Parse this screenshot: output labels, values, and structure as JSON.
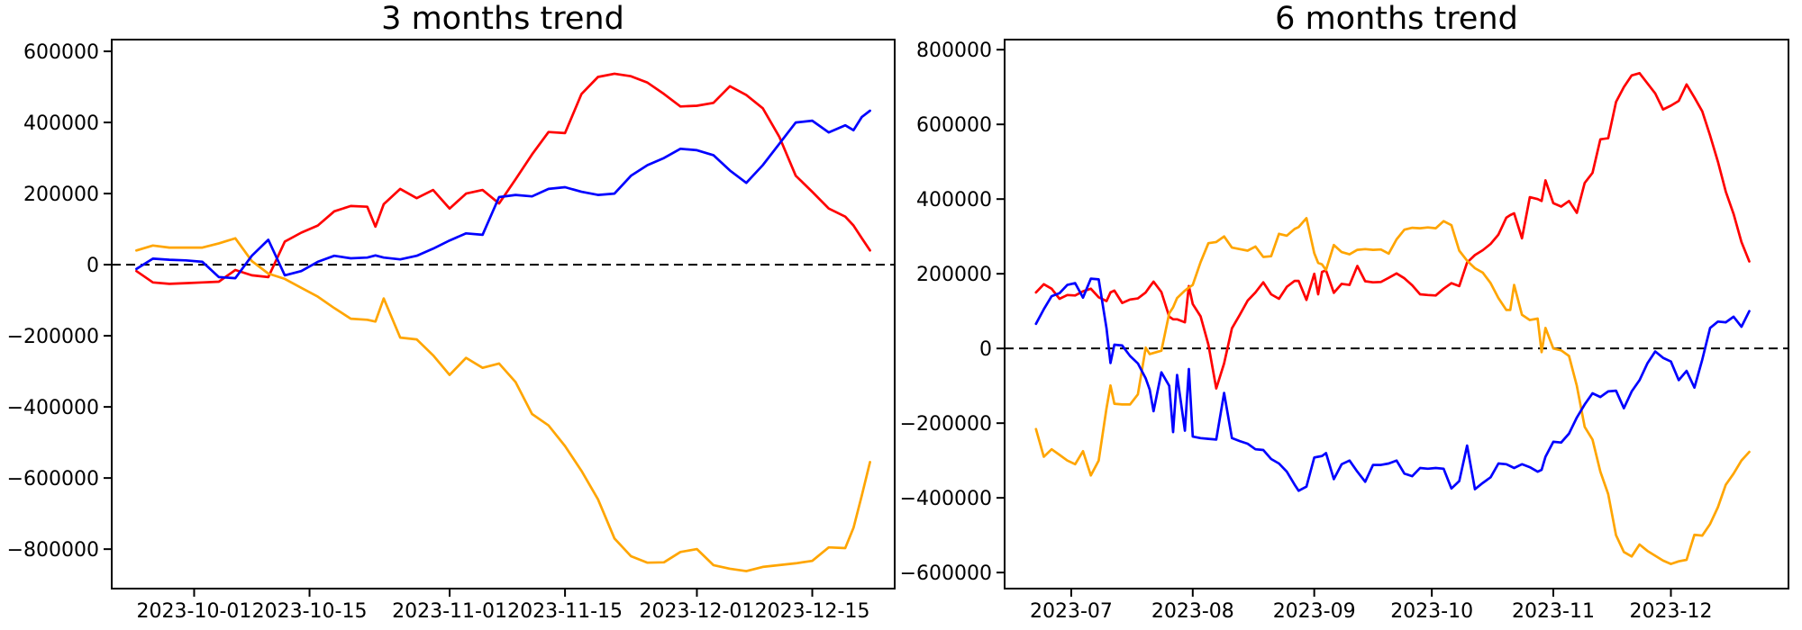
{
  "chart_data": [
    {
      "type": "line",
      "title": "3 months trend",
      "grid": false,
      "legend": null,
      "zero_line": true,
      "xlim": [
        "2023-09-21",
        "2023-12-25"
      ],
      "ylim": [
        -911000,
        633000
      ],
      "xticks": [
        {
          "date": "2023-10-01",
          "label": "2023-10-01"
        },
        {
          "date": "2023-10-15",
          "label": "2023-10-15"
        },
        {
          "date": "2023-11-01",
          "label": "2023-11-01"
        },
        {
          "date": "2023-11-15",
          "label": "2023-11-15"
        },
        {
          "date": "2023-12-01",
          "label": "2023-12-01"
        },
        {
          "date": "2023-12-15",
          "label": "2023-12-15"
        }
      ],
      "yticks": [
        {
          "value": 600000,
          "label": "600000"
        },
        {
          "value": 400000,
          "label": "400000"
        },
        {
          "value": 200000,
          "label": "200000"
        },
        {
          "value": 0,
          "label": "0"
        },
        {
          "value": -200000,
          "label": "−200000"
        },
        {
          "value": -400000,
          "label": "−400000"
        },
        {
          "value": -600000,
          "label": "−600000"
        },
        {
          "value": -800000,
          "label": "−800000"
        }
      ],
      "x": [
        "2023-09-24",
        "2023-09-26",
        "2023-09-28",
        "2023-09-30",
        "2023-10-02",
        "2023-10-04",
        "2023-10-06",
        "2023-10-08",
        "2023-10-10",
        "2023-10-12",
        "2023-10-14",
        "2023-10-16",
        "2023-10-18",
        "2023-10-20",
        "2023-10-22",
        "2023-10-23",
        "2023-10-24",
        "2023-10-26",
        "2023-10-28",
        "2023-10-30",
        "2023-11-01",
        "2023-11-03",
        "2023-11-05",
        "2023-11-07",
        "2023-11-09",
        "2023-11-11",
        "2023-11-13",
        "2023-11-15",
        "2023-11-17",
        "2023-11-19",
        "2023-11-21",
        "2023-11-23",
        "2023-11-25",
        "2023-11-27",
        "2023-11-29",
        "2023-12-01",
        "2023-12-03",
        "2023-12-05",
        "2023-12-07",
        "2023-12-09",
        "2023-12-11",
        "2023-12-13",
        "2023-12-15",
        "2023-12-17",
        "2023-12-19",
        "2023-12-20",
        "2023-12-21",
        "2023-12-22"
      ],
      "series": [
        {
          "name": "red",
          "color": "#ff0000",
          "values": [
            -18000,
            -50000,
            -54000,
            -52000,
            -50000,
            -48000,
            -15000,
            -30000,
            -35000,
            65000,
            90000,
            110000,
            150000,
            165000,
            163000,
            107000,
            170000,
            213000,
            187000,
            210000,
            158000,
            200000,
            210000,
            172000,
            240000,
            310000,
            373000,
            370000,
            480000,
            528000,
            537000,
            530000,
            512000,
            480000,
            445000,
            447000,
            455000,
            502000,
            477000,
            440000,
            360000,
            250000,
            205000,
            158000,
            135000,
            110000,
            75000,
            40000
          ]
        },
        {
          "name": "blue",
          "color": "#0000ff",
          "values": [
            -12000,
            17000,
            14000,
            12000,
            8000,
            -35000,
            -38000,
            25000,
            70000,
            -30000,
            -18000,
            8000,
            25000,
            18000,
            20000,
            26000,
            20000,
            15000,
            25000,
            45000,
            68000,
            88000,
            84000,
            190000,
            196000,
            192000,
            213000,
            218000,
            205000,
            196000,
            200000,
            250000,
            280000,
            300000,
            326000,
            322000,
            308000,
            265000,
            230000,
            280000,
            340000,
            400000,
            405000,
            372000,
            392000,
            378000,
            415000,
            433000
          ]
        },
        {
          "name": "orange",
          "color": "#ffa500",
          "values": [
            40000,
            54000,
            48000,
            48000,
            48000,
            60000,
            74000,
            10000,
            -25000,
            -40000,
            -65000,
            -90000,
            -122000,
            -152000,
            -155000,
            -160000,
            -95000,
            -205000,
            -210000,
            -255000,
            -310000,
            -262000,
            -290000,
            -278000,
            -330000,
            -420000,
            -452000,
            -510000,
            -580000,
            -660000,
            -770000,
            -820000,
            -838000,
            -837000,
            -808000,
            -800000,
            -845000,
            -855000,
            -862000,
            -850000,
            -845000,
            -840000,
            -833000,
            -795000,
            -797000,
            -740000,
            -650000,
            -555000
          ]
        }
      ]
    },
    {
      "type": "line",
      "title": "6 months trend",
      "grid": false,
      "legend": null,
      "zero_line": true,
      "xlim": [
        "2023-06-14",
        "2023-12-31"
      ],
      "ylim": [
        -643000,
        827000
      ],
      "xticks": [
        {
          "date": "2023-07-01",
          "label": "2023-07"
        },
        {
          "date": "2023-08-01",
          "label": "2023-08"
        },
        {
          "date": "2023-09-01",
          "label": "2023-09"
        },
        {
          "date": "2023-10-01",
          "label": "2023-10"
        },
        {
          "date": "2023-11-01",
          "label": "2023-11"
        },
        {
          "date": "2023-12-01",
          "label": "2023-12"
        }
      ],
      "yticks": [
        {
          "value": 800000,
          "label": "800000"
        },
        {
          "value": 600000,
          "label": "600000"
        },
        {
          "value": 400000,
          "label": "400000"
        },
        {
          "value": 200000,
          "label": "200000"
        },
        {
          "value": 0,
          "label": "0"
        },
        {
          "value": -200000,
          "label": "−200000"
        },
        {
          "value": -400000,
          "label": "−400000"
        },
        {
          "value": -600000,
          "label": "−600000"
        }
      ],
      "x": [
        "2023-06-22",
        "2023-06-24",
        "2023-06-26",
        "2023-06-28",
        "2023-06-30",
        "2023-07-02",
        "2023-07-04",
        "2023-07-06",
        "2023-07-08",
        "2023-07-10",
        "2023-07-11",
        "2023-07-12",
        "2023-07-14",
        "2023-07-16",
        "2023-07-18",
        "2023-07-20",
        "2023-07-21",
        "2023-07-22",
        "2023-07-24",
        "2023-07-26",
        "2023-07-27",
        "2023-07-28",
        "2023-07-30",
        "2023-07-31",
        "2023-08-01",
        "2023-08-03",
        "2023-08-05",
        "2023-08-07",
        "2023-08-09",
        "2023-08-11",
        "2023-08-13",
        "2023-08-15",
        "2023-08-17",
        "2023-08-19",
        "2023-08-21",
        "2023-08-23",
        "2023-08-25",
        "2023-08-27",
        "2023-08-28",
        "2023-08-30",
        "2023-09-01",
        "2023-09-02",
        "2023-09-03",
        "2023-09-04",
        "2023-09-06",
        "2023-09-08",
        "2023-09-10",
        "2023-09-12",
        "2023-09-14",
        "2023-09-16",
        "2023-09-18",
        "2023-09-20",
        "2023-09-22",
        "2023-09-24",
        "2023-09-26",
        "2023-09-28",
        "2023-09-30",
        "2023-10-02",
        "2023-10-04",
        "2023-10-06",
        "2023-10-08",
        "2023-10-10",
        "2023-10-12",
        "2023-10-14",
        "2023-10-16",
        "2023-10-18",
        "2023-10-20",
        "2023-10-21",
        "2023-10-22",
        "2023-10-24",
        "2023-10-26",
        "2023-10-28",
        "2023-10-29",
        "2023-10-30",
        "2023-11-01",
        "2023-11-03",
        "2023-11-05",
        "2023-11-07",
        "2023-11-09",
        "2023-11-11",
        "2023-11-13",
        "2023-11-15",
        "2023-11-17",
        "2023-11-19",
        "2023-11-21",
        "2023-11-23",
        "2023-11-25",
        "2023-11-27",
        "2023-11-29",
        "2023-12-01",
        "2023-12-03",
        "2023-12-05",
        "2023-12-07",
        "2023-12-09",
        "2023-12-11",
        "2023-12-13",
        "2023-12-15",
        "2023-12-17",
        "2023-12-19",
        "2023-12-21"
      ],
      "series": [
        {
          "name": "red",
          "color": "#ff0000",
          "values": [
            150000,
            172000,
            160000,
            133000,
            143000,
            142000,
            153000,
            160000,
            137000,
            127000,
            150000,
            155000,
            122000,
            131000,
            134000,
            150000,
            165000,
            179000,
            151000,
            85000,
            78000,
            78000,
            70000,
            167000,
            119000,
            86000,
            10000,
            -107000,
            -40000,
            54000,
            90000,
            128000,
            150000,
            177000,
            145000,
            133000,
            165000,
            181000,
            181000,
            130000,
            200000,
            145000,
            205000,
            209000,
            149000,
            173000,
            170000,
            221000,
            180000,
            177000,
            178000,
            189000,
            201000,
            188000,
            169000,
            145000,
            143000,
            142000,
            160000,
            175000,
            167000,
            230000,
            250000,
            263000,
            280000,
            305000,
            350000,
            357000,
            362000,
            295000,
            405000,
            400000,
            395000,
            450000,
            389000,
            380000,
            395000,
            363000,
            443000,
            470000,
            560000,
            563000,
            660000,
            700000,
            731000,
            737000,
            710000,
            683000,
            640000,
            650000,
            663000,
            707000,
            672000,
            635000,
            570000,
            500000,
            420000,
            360000,
            285000,
            233000
          ]
        },
        {
          "name": "blue",
          "color": "#0000ff",
          "values": [
            66000,
            105000,
            140000,
            148000,
            170000,
            175000,
            136000,
            187000,
            185000,
            54000,
            -39000,
            10000,
            8000,
            -20000,
            -40000,
            -80000,
            -110000,
            -168000,
            -64000,
            -100000,
            -224000,
            -71000,
            -220000,
            -55000,
            -236000,
            -240000,
            -242000,
            -244000,
            -119000,
            -240000,
            -248000,
            -255000,
            -270000,
            -272000,
            -296000,
            -308000,
            -330000,
            -365000,
            -381000,
            -370000,
            -292000,
            -290000,
            -288000,
            -280000,
            -350000,
            -310000,
            -300000,
            -330000,
            -357000,
            -312000,
            -312000,
            -308000,
            -300000,
            -335000,
            -342000,
            -320000,
            -322000,
            -320000,
            -322000,
            -375000,
            -355000,
            -260000,
            -377000,
            -360000,
            -345000,
            -308000,
            -310000,
            -315000,
            -320000,
            -310000,
            -318000,
            -330000,
            -325000,
            -290000,
            -250000,
            -252000,
            -228000,
            -185000,
            -150000,
            -120000,
            -130000,
            -115000,
            -113000,
            -160000,
            -115000,
            -85000,
            -40000,
            -8000,
            -25000,
            -35000,
            -85000,
            -60000,
            -105000,
            -30000,
            55000,
            72000,
            70000,
            85000,
            58000,
            100000
          ]
        },
        {
          "name": "orange",
          "color": "#ffa500",
          "values": [
            -216000,
            -290000,
            -270000,
            -285000,
            -300000,
            -310000,
            -275000,
            -340000,
            -300000,
            -160000,
            -99000,
            -148000,
            -150000,
            -150000,
            -123000,
            2000,
            -15000,
            -12000,
            -6000,
            94000,
            110000,
            135000,
            155000,
            163000,
            170000,
            231000,
            282000,
            285000,
            300000,
            270000,
            266000,
            262000,
            273000,
            245000,
            247000,
            307000,
            302000,
            320000,
            325000,
            349000,
            255000,
            229000,
            225000,
            210000,
            277000,
            258000,
            252000,
            264000,
            266000,
            264000,
            265000,
            254000,
            292000,
            318000,
            323000,
            322000,
            324000,
            322000,
            341000,
            330000,
            262000,
            235000,
            215000,
            203000,
            175000,
            135000,
            103000,
            103000,
            170000,
            90000,
            76000,
            80000,
            -10000,
            55000,
            0,
            -5000,
            -20000,
            -100000,
            -210000,
            -244000,
            -330000,
            -390000,
            -500000,
            -545000,
            -557000,
            -525000,
            -542000,
            -555000,
            -568000,
            -577000,
            -570000,
            -566000,
            -499000,
            -501000,
            -470000,
            -425000,
            -365000,
            -335000,
            -300000,
            -277000
          ]
        }
      ]
    }
  ]
}
